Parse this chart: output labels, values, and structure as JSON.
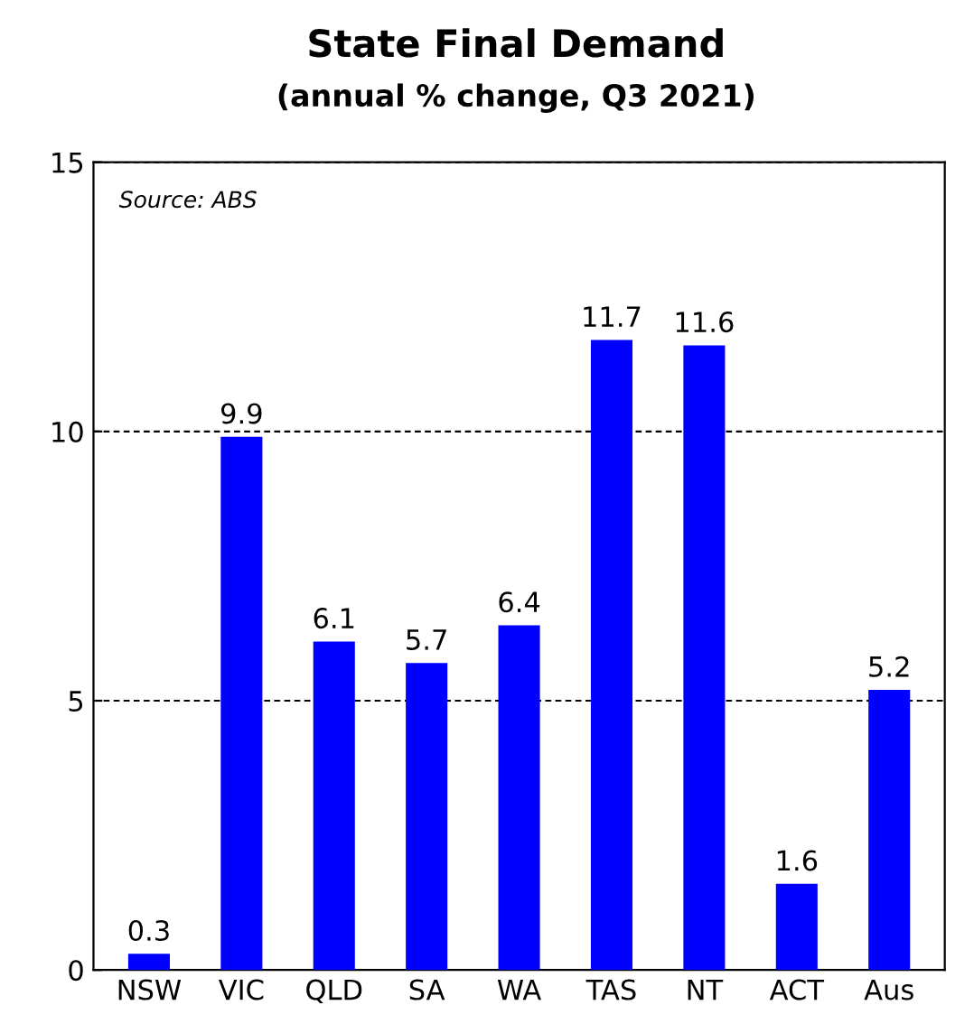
{
  "chart_data": {
    "type": "bar",
    "title": "State Final Demand",
    "subtitle": "(annual % change, Q3 2021)",
    "categories": [
      "NSW",
      "VIC",
      "QLD",
      "SA",
      "WA",
      "TAS",
      "NT",
      "ACT",
      "Aus"
    ],
    "values": [
      0.3,
      9.9,
      6.1,
      5.7,
      6.4,
      11.7,
      11.6,
      1.6,
      5.2
    ],
    "color": "#0000ff",
    "ylim": [
      0,
      15
    ],
    "yticks": [
      0,
      5,
      10,
      15
    ],
    "grid": "y",
    "data_labels": true,
    "annotations": [
      "Source: ABS"
    ]
  }
}
